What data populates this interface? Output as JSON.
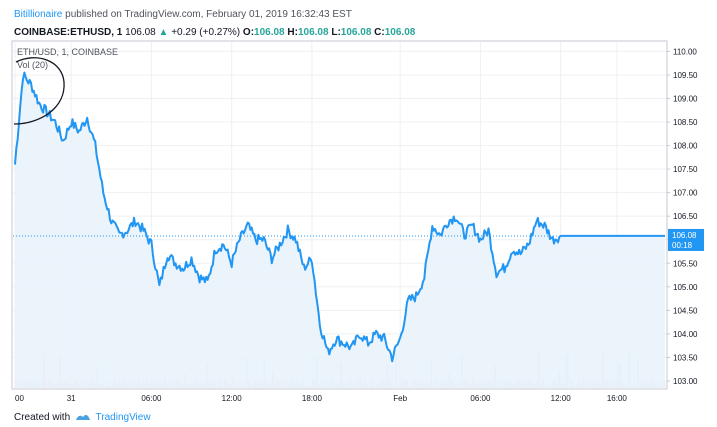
{
  "header": {
    "author": "Bitillionaire",
    "published_text": "published on TradingView.com, February 01, 2019 16:32:43 EST"
  },
  "quote": {
    "symbol_line": "COINBASE:ETHUSD, 1",
    "last": "106.08",
    "change": "+0.29 (+0.27%)",
    "o_label": "O:",
    "o": "106.08",
    "h_label": "H:",
    "h": "106.08",
    "l_label": "L:",
    "l": "106.08",
    "c_label": "C:",
    "c": "106.08"
  },
  "legend": {
    "symbol": "ETH/USD, 1, COINBASE",
    "volume": "Vol (20)"
  },
  "footer": {
    "created_with": "Created with",
    "brand": "TradingView"
  },
  "colors": {
    "line": "#2196f3",
    "area": "#e9f2fb",
    "price_tag": "#2196f3",
    "vol_up": "#8fd4cc",
    "vol_down": "#f4a7a7",
    "grid": "#eef0f3",
    "annotation": "#131722"
  },
  "chart_data": {
    "type": "area",
    "series": [
      {
        "name": "ETH/USD",
        "x": [
          "00:00",
          "00:30",
          "01:00",
          "01:30",
          "02:00",
          "02:30",
          "03:00",
          "03:30",
          "04:00",
          "04:30",
          "05:00",
          "05:30",
          "06:00",
          "06:30",
          "07:00",
          "07:30",
          "08:00",
          "08:30",
          "09:00",
          "09:30",
          "10:00",
          "10:30",
          "11:00",
          "11:30",
          "12:00",
          "12:30",
          "13:00",
          "13:30",
          "14:00",
          "14:30",
          "15:00",
          "15:30",
          "16:00",
          "16:30",
          "17:00",
          "17:30",
          "18:00",
          "18:30",
          "19:00",
          "19:30",
          "20:00",
          "20:30",
          "21:00",
          "21:30",
          "22:00",
          "22:30",
          "23:00",
          "23:30",
          "00:00",
          "00:30",
          "01:00",
          "01:30",
          "02:00",
          "02:30",
          "03:00",
          "03:30",
          "04:00",
          "04:30",
          "05:00",
          "05:30",
          "06:00",
          "06:30",
          "07:00",
          "07:30",
          "08:00",
          "08:30",
          "09:00",
          "09:30",
          "10:00",
          "10:30",
          "11:00",
          "11:30",
          "12:00",
          "12:30",
          "13:00",
          "13:30",
          "14:00",
          "14:30",
          "15:00",
          "15:30",
          "16:00",
          "16:30"
        ],
        "values": [
          107.6,
          109.5,
          109.3,
          108.9,
          108.7,
          108.5,
          108.1,
          108.5,
          108.3,
          108.6,
          108.0,
          107.0,
          106.4,
          106.1,
          106.2,
          106.4,
          106.2,
          105.9,
          105.0,
          105.7,
          105.5,
          105.4,
          105.6,
          105.2,
          105.1,
          105.8,
          105.9,
          105.5,
          106.0,
          106.3,
          106.0,
          106.0,
          105.6,
          105.9,
          106.2,
          106.0,
          105.4,
          105.6,
          104.2,
          103.6,
          103.9,
          103.8,
          103.7,
          104.0,
          103.8,
          104.0,
          103.9,
          103.5,
          103.9,
          104.7,
          104.8,
          105.2,
          106.3,
          106.1,
          106.4,
          106.5,
          106.1,
          106.3,
          106.0,
          106.2,
          105.3,
          105.4,
          105.8,
          105.7,
          105.9,
          106.4,
          106.3,
          106.0,
          106.08,
          106.08,
          106.08,
          106.08,
          106.08,
          106.08,
          106.08,
          106.08,
          106.08,
          106.08,
          106.08,
          106.08,
          106.08,
          106.08
        ],
        "last_value": 106.08
      }
    ],
    "x_ticks": [
      {
        "label": "00",
        "i": 0
      },
      {
        "label": "31",
        "i": 7
      },
      {
        "label": "06:00",
        "i": 17
      },
      {
        "label": "12:00",
        "i": 27
      },
      {
        "label": "18:00",
        "i": 37
      },
      {
        "label": "Feb",
        "i": 48
      },
      {
        "label": "06:00",
        "i": 58
      },
      {
        "label": "12:00",
        "i": 68
      },
      {
        "label": "16:00",
        "i": 75
      }
    ],
    "y_ticks": [
      "110.00",
      "109.50",
      "109.00",
      "108.50",
      "108.00",
      "107.50",
      "107.00",
      "106.50",
      "106.00",
      "105.50",
      "105.00",
      "104.50",
      "104.00",
      "103.50",
      "103.00"
    ],
    "ylim": [
      102.85,
      110.2
    ],
    "price_tag": "106.08",
    "countdown": "00:18",
    "grid": true,
    "legend_position": "top-left"
  }
}
